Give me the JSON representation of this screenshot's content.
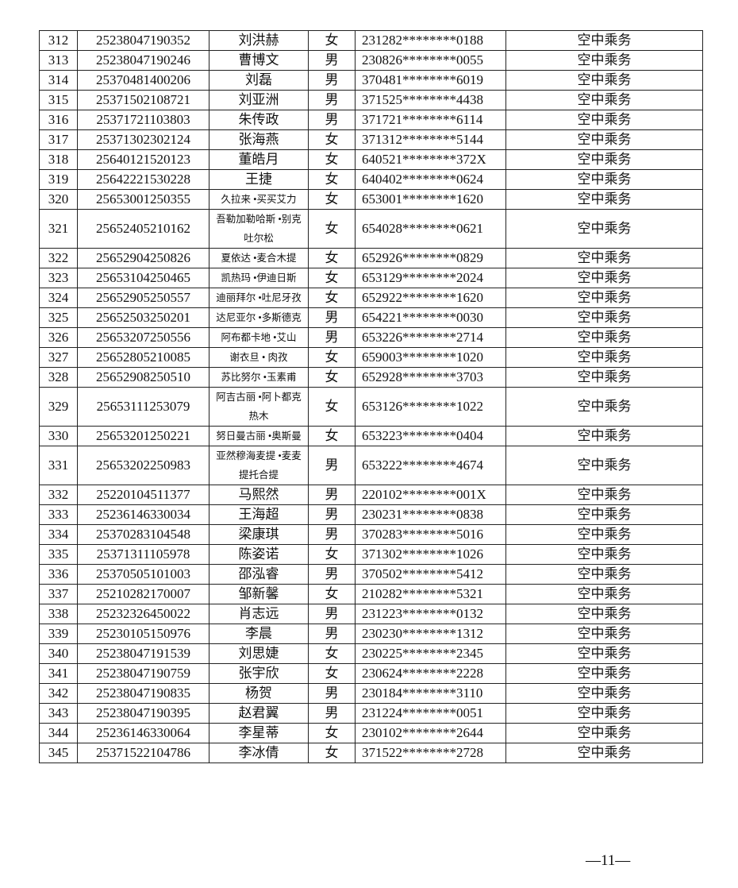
{
  "rows": [
    [
      "312",
      "25238047190352",
      "刘洪赫",
      "女",
      "231282********0188",
      "空中乘务"
    ],
    [
      "313",
      "25238047190246",
      "曹博文",
      "男",
      "230826********0055",
      "空中乘务"
    ],
    [
      "314",
      "25370481400206",
      "刘磊",
      "男",
      "370481********6019",
      "空中乘务"
    ],
    [
      "315",
      "25371502108721",
      "刘亚洲",
      "男",
      "371525********4438",
      "空中乘务"
    ],
    [
      "316",
      "25371721103803",
      "朱传政",
      "男",
      "371721********6114",
      "空中乘务"
    ],
    [
      "317",
      "25371302302124",
      "张海燕",
      "女",
      "371312********5144",
      "空中乘务"
    ],
    [
      "318",
      "25640121520123",
      "董皓月",
      "女",
      "640521********372X",
      "空中乘务"
    ],
    [
      "319",
      "25642221530228",
      "王捷",
      "女",
      "640402********0624",
      "空中乘务"
    ],
    [
      "320",
      "25653001250355",
      "久拉来 •买买艾力",
      "女",
      "653001********1620",
      "空中乘务"
    ],
    [
      "321",
      "25652405210162",
      "吾勒加勒哈斯 •别克吐尔松",
      "女",
      "654028********0621",
      "空中乘务"
    ],
    [
      "322",
      "25652904250826",
      "夏依达 •麦合木提",
      "女",
      "652926********0829",
      "空中乘务"
    ],
    [
      "323",
      "25653104250465",
      "凯热玛 •伊迪日斯",
      "女",
      "653129********2024",
      "空中乘务"
    ],
    [
      "324",
      "25652905250557",
      "迪丽拜尔 •吐尼牙孜",
      "女",
      "652922********1620",
      "空中乘务"
    ],
    [
      "325",
      "25652503250201",
      "达尼亚尔 •多斯德克",
      "男",
      "654221********0030",
      "空中乘务"
    ],
    [
      "326",
      "25653207250556",
      "阿布都卡地 •艾山",
      "男",
      "653226********2714",
      "空中乘务"
    ],
    [
      "327",
      "25652805210085",
      "谢衣旦 • 肉孜",
      "女",
      "659003********1020",
      "空中乘务"
    ],
    [
      "328",
      "25652908250510",
      "苏比努尔 •玉素甫",
      "女",
      "652928********3703",
      "空中乘务"
    ],
    [
      "329",
      "25653111253079",
      "阿吉古丽 •阿卜都克热木",
      "女",
      "653126********1022",
      "空中乘务"
    ],
    [
      "330",
      "25653201250221",
      "努日曼古丽 •奥斯曼",
      "女",
      "653223********0404",
      "空中乘务"
    ],
    [
      "331",
      "25653202250983",
      "亚然穆海麦提 •麦麦提托合提",
      "男",
      "653222********4674",
      "空中乘务"
    ],
    [
      "332",
      "25220104511377",
      "马熙然",
      "男",
      "220102********001X",
      "空中乘务"
    ],
    [
      "333",
      "25236146330034",
      "王海超",
      "男",
      "230231********0838",
      "空中乘务"
    ],
    [
      "334",
      "25370283104548",
      "梁康琪",
      "男",
      "370283********5016",
      "空中乘务"
    ],
    [
      "335",
      "25371311105978",
      "陈姿诺",
      "女",
      "371302********1026",
      "空中乘务"
    ],
    [
      "336",
      "25370505101003",
      "邵泓睿",
      "男",
      "370502********5412",
      "空中乘务"
    ],
    [
      "337",
      "25210282170007",
      "邹新馨",
      "女",
      "210282********5321",
      "空中乘务"
    ],
    [
      "338",
      "25232326450022",
      "肖志远",
      "男",
      "231223********0132",
      "空中乘务"
    ],
    [
      "339",
      "25230105150976",
      "李晨",
      "男",
      "230230********1312",
      "空中乘务"
    ],
    [
      "340",
      "25238047191539",
      "刘思婕",
      "女",
      "230225********2345",
      "空中乘务"
    ],
    [
      "341",
      "25238047190759",
      "张宇欣",
      "女",
      "230624********2228",
      "空中乘务"
    ],
    [
      "342",
      "25238047190835",
      "杨贺",
      "男",
      "230184********3110",
      "空中乘务"
    ],
    [
      "343",
      "25238047190395",
      "赵君翼",
      "男",
      "231224********0051",
      "空中乘务"
    ],
    [
      "344",
      "25236146330064",
      "李星蒂",
      "女",
      "230102********2644",
      "空中乘务"
    ],
    [
      "345",
      "25371522104786",
      "李冰倩",
      "女",
      "371522********2728",
      "空中乘务"
    ]
  ],
  "footer": {
    "page_number": "—11—"
  }
}
